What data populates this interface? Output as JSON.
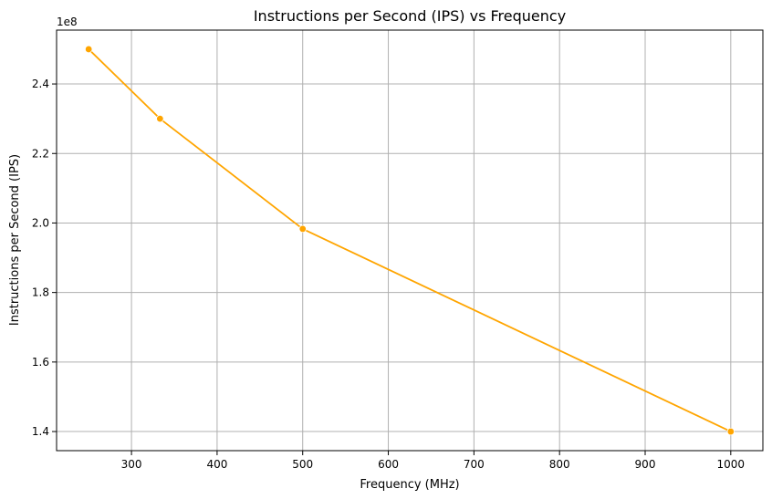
{
  "chart_data": {
    "type": "line",
    "title": "Instructions per Second (IPS) vs Frequency",
    "xlabel": "Frequency (MHz)",
    "ylabel": "Instructions per Second (IPS)",
    "y_offset_label": "1e8",
    "x_ticks": [
      300,
      400,
      500,
      600,
      700,
      800,
      900,
      1000
    ],
    "x_tick_labels": [
      "300",
      "400",
      "500",
      "600",
      "700",
      "800",
      "900",
      "1000"
    ],
    "y_ticks": [
      1.4,
      1.6,
      1.8,
      2.0,
      2.2,
      2.4
    ],
    "y_tick_labels": [
      "1.4",
      "1.6",
      "1.8",
      "2.0",
      "2.2",
      "2.4"
    ],
    "xlim": [
      212.5,
      1037.5
    ],
    "ylim": [
      1.345,
      2.555
    ],
    "grid": true,
    "legend": "none",
    "colors": {
      "series": "#FFA500",
      "grid": "#B0B0B0",
      "axis": "#000000"
    },
    "series": [
      {
        "x": [
          250,
          333.33,
          500,
          1000
        ],
        "y": [
          2.5,
          2.3,
          1.983,
          1.4
        ]
      }
    ]
  }
}
